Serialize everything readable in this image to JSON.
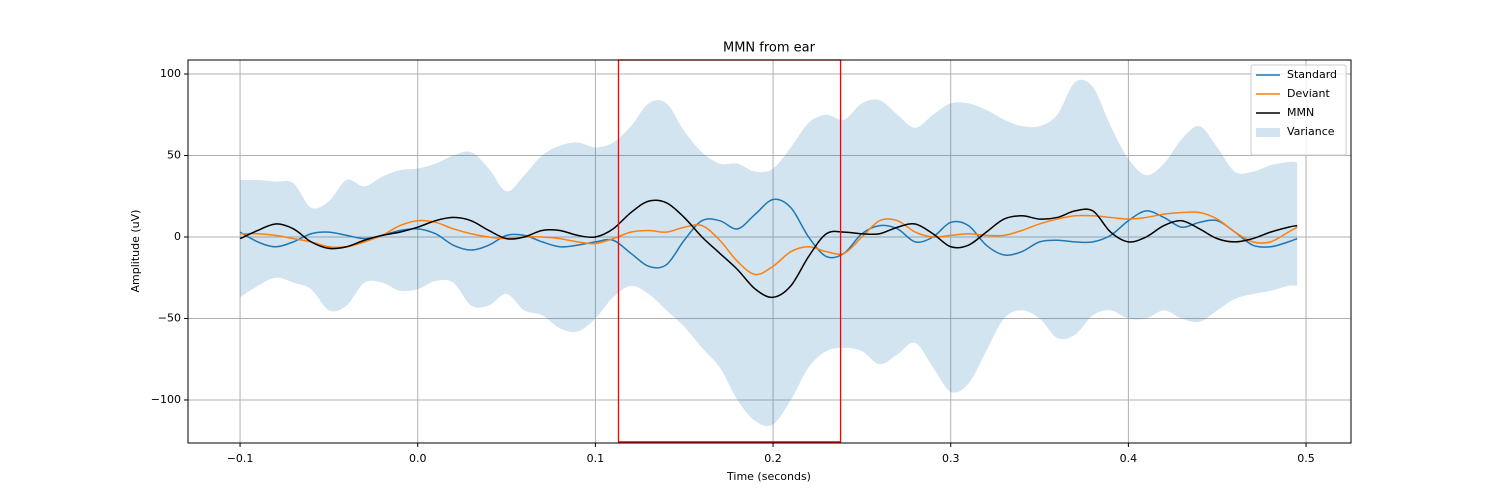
{
  "chart_data": {
    "type": "line",
    "title": "MMN from ear",
    "xlabel": "Time (seconds)",
    "ylabel": "Amplitude (uV)",
    "x": [
      -0.1,
      -0.09,
      -0.08,
      -0.07,
      -0.06,
      -0.05,
      -0.04,
      -0.03,
      -0.02,
      -0.01,
      0.0,
      0.01,
      0.02,
      0.03,
      0.04,
      0.05,
      0.06,
      0.07,
      0.08,
      0.09,
      0.1,
      0.11,
      0.12,
      0.13,
      0.14,
      0.15,
      0.16,
      0.17,
      0.18,
      0.19,
      0.2,
      0.21,
      0.22,
      0.23,
      0.24,
      0.25,
      0.26,
      0.27,
      0.28,
      0.29,
      0.3,
      0.31,
      0.32,
      0.33,
      0.34,
      0.35,
      0.36,
      0.37,
      0.38,
      0.39,
      0.4,
      0.41,
      0.42,
      0.43,
      0.44,
      0.45,
      0.46,
      0.47,
      0.48,
      0.49,
      0.495
    ],
    "series": [
      {
        "name": "Standard",
        "color": "#1f77b4",
        "values": [
          3,
          -3,
          -6,
          -3,
          2,
          3,
          1,
          -1,
          1,
          4,
          5,
          2,
          -5,
          -8,
          -5,
          1,
          1,
          -3,
          -6,
          -5,
          -3,
          -2,
          -10,
          -18,
          -17,
          -2,
          10,
          10,
          5,
          14,
          23,
          18,
          0,
          -12,
          -10,
          2,
          7,
          5,
          -3,
          0,
          9,
          7,
          -5,
          -11,
          -9,
          -3,
          -2,
          -3,
          -3,
          1,
          10,
          16,
          12,
          6,
          9,
          10,
          3,
          -5,
          -6,
          -3,
          -1
        ]
      },
      {
        "name": "Deviant",
        "color": "#ff7f0e",
        "values": [
          2,
          2,
          1,
          -1,
          -3,
          -6,
          -6,
          -3,
          1,
          7,
          10,
          9,
          5,
          2,
          0,
          -1,
          0,
          0,
          -1,
          -3,
          -4,
          -1,
          3,
          4,
          3,
          6,
          7,
          -2,
          -15,
          -23,
          -18,
          -9,
          -6,
          -9,
          -10,
          0,
          10,
          10,
          3,
          0,
          1,
          2,
          1,
          1,
          4,
          8,
          11,
          13,
          13,
          12,
          11,
          12,
          14,
          15,
          15,
          11,
          3,
          -3,
          -3,
          3,
          6
        ]
      },
      {
        "name": "MMN",
        "color": "#000000",
        "values": [
          -1,
          4,
          8,
          5,
          -3,
          -7,
          -6,
          -2,
          1,
          3,
          6,
          10,
          12,
          10,
          4,
          -1,
          0,
          4,
          4,
          1,
          0,
          5,
          15,
          22,
          21,
          12,
          0,
          -10,
          -20,
          -32,
          -37,
          -30,
          -12,
          2,
          3,
          2,
          2,
          6,
          8,
          2,
          -6,
          -5,
          3,
          11,
          13,
          11,
          12,
          16,
          16,
          3,
          -3,
          0,
          7,
          10,
          5,
          -1,
          -3,
          -1,
          3,
          6,
          7
        ]
      }
    ],
    "bands": [
      {
        "name": "Variance",
        "color": "#1f77b4",
        "alpha": 0.2,
        "upper": [
          35,
          35,
          34,
          33,
          18,
          22,
          35,
          31,
          37,
          41,
          42,
          45,
          50,
          52,
          42,
          28,
          38,
          50,
          56,
          58,
          55,
          58,
          68,
          82,
          82,
          65,
          52,
          45,
          45,
          40,
          42,
          55,
          70,
          75,
          72,
          82,
          84,
          75,
          67,
          75,
          82,
          82,
          78,
          72,
          68,
          68,
          75,
          95,
          92,
          68,
          48,
          38,
          45,
          60,
          68,
          55,
          40,
          40,
          44,
          46,
          46
        ],
        "lower": [
          -37,
          -30,
          -25,
          -28,
          -32,
          -45,
          -42,
          -28,
          -28,
          -33,
          -32,
          -27,
          -28,
          -42,
          -42,
          -35,
          -45,
          -48,
          -56,
          -58,
          -50,
          -37,
          -30,
          -35,
          -45,
          -55,
          -68,
          -80,
          -100,
          -113,
          -115,
          -100,
          -80,
          -70,
          -68,
          -70,
          -78,
          -72,
          -65,
          -80,
          -95,
          -90,
          -70,
          -50,
          -45,
          -50,
          -62,
          -60,
          -48,
          -45,
          -50,
          -50,
          -45,
          -50,
          -52,
          -45,
          -38,
          -35,
          -33,
          -30,
          -30
        ]
      }
    ],
    "highlight": {
      "x": [
        0.113,
        0.238
      ],
      "y": [
        -125.7,
        108.6
      ],
      "color": "#ff0000"
    },
    "xlim": [
      -0.1293,
      0.5253
    ],
    "ylim": [
      -126.4,
      108.6
    ],
    "xticks": [
      {
        "value": -0.1,
        "label": "−0.1"
      },
      {
        "value": 0,
        "label": "0.0"
      },
      0.1,
      0.2,
      0.3,
      0.4,
      0.5
    ],
    "yticks": [
      {
        "value": -100,
        "label": "−100"
      },
      {
        "value": -50,
        "label": "−50"
      },
      0,
      50,
      100
    ],
    "grid": true,
    "legend": "upper right"
  }
}
